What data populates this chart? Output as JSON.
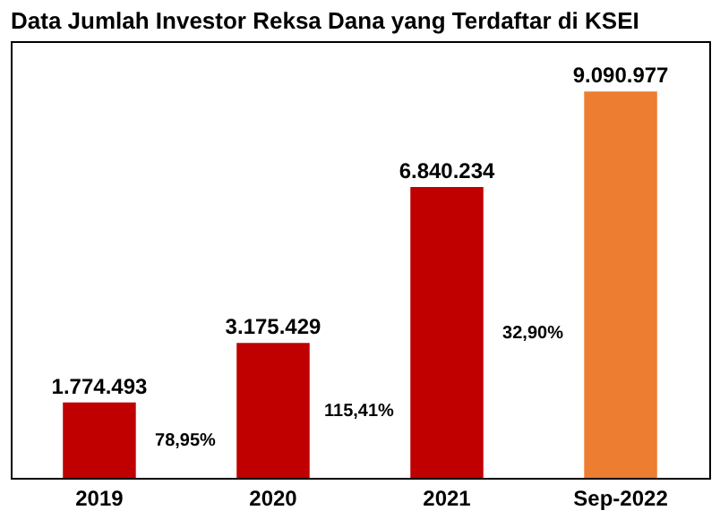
{
  "chart_data": {
    "type": "bar",
    "title": "Data Jumlah Investor Reksa Dana yang Terdaftar di KSEI",
    "categories": [
      "2019",
      "2020",
      "2021",
      "Sep-2022"
    ],
    "values": [
      1774493,
      3175429,
      6840234,
      9090977
    ],
    "colors": [
      "#c00000",
      "#c00000",
      "#c00000",
      "#ed7d31"
    ],
    "value_labels": [
      "1.774.493",
      "3.175.429",
      "6.840.234",
      "9.090.977"
    ],
    "annotations": [
      "78,95%",
      "115,41%",
      "32,90%"
    ],
    "grid": false
  }
}
